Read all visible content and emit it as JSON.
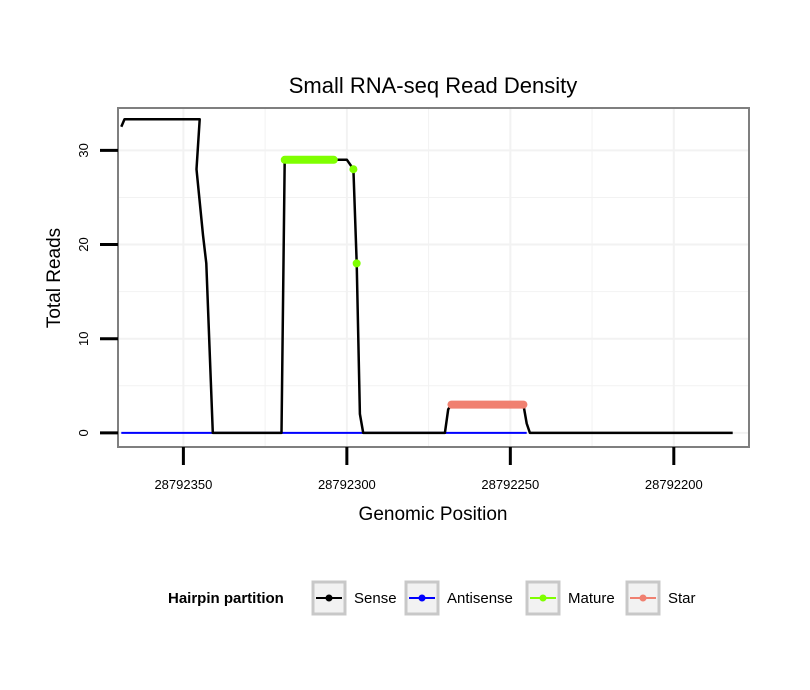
{
  "chart_data": {
    "type": "line",
    "title": "Small RNA-seq Read Density",
    "xlabel": "Genomic Position",
    "ylabel": "Total Reads",
    "x_reversed": true,
    "xlim": [
      28792370,
      28792177
    ],
    "ylim": [
      -1.5,
      34.5
    ],
    "x_ticks": [
      28792350,
      28792300,
      28792250,
      28792200
    ],
    "x_tick_labels": [
      "28792350",
      "28792300",
      "28792250",
      "28792200"
    ],
    "y_ticks": [
      0,
      10,
      20,
      30
    ],
    "y_tick_labels": [
      "0",
      "10",
      "20",
      "30"
    ],
    "grid": true,
    "legend": {
      "title": "Hairpin partition",
      "position": "bottom",
      "entries": [
        "Sense",
        "Antisense",
        "Mature",
        "Star"
      ]
    },
    "series": [
      {
        "name": "Sense",
        "color": "#000000",
        "x": [
          28792369,
          28792368,
          28792366,
          28792360,
          28792345,
          28792346,
          28792344,
          28792343,
          28792341,
          28792320,
          28792319,
          28792316,
          28792300,
          28792298,
          28792297,
          28792296,
          28792295,
          28792270,
          28792269,
          28792268,
          28792246,
          28792245,
          28792244,
          28792182
        ],
        "y": [
          32.5,
          33.3,
          33.3,
          33.3,
          33.3,
          28,
          21,
          18,
          0,
          0,
          29,
          29,
          29,
          28,
          18,
          2,
          0,
          0,
          2.5,
          3,
          3,
          1,
          0,
          0
        ]
      },
      {
        "name": "Antisense",
        "color": "#0000ff",
        "x": [
          28792369,
          28792245
        ],
        "y": [
          0,
          0
        ]
      },
      {
        "name": "Mature",
        "color": "#7fff00",
        "x": [
          28792319,
          28792304,
          28792298,
          28792297
        ],
        "y": [
          29,
          29,
          28,
          18
        ],
        "segments": [
          [
            0,
            1
          ]
        ],
        "points": [
          2,
          3
        ]
      },
      {
        "name": "Star",
        "color": "#f08070",
        "x": [
          28792268,
          28792246
        ],
        "y": [
          3,
          3
        ],
        "segments": [
          [
            0,
            1
          ]
        ],
        "points": []
      }
    ]
  }
}
